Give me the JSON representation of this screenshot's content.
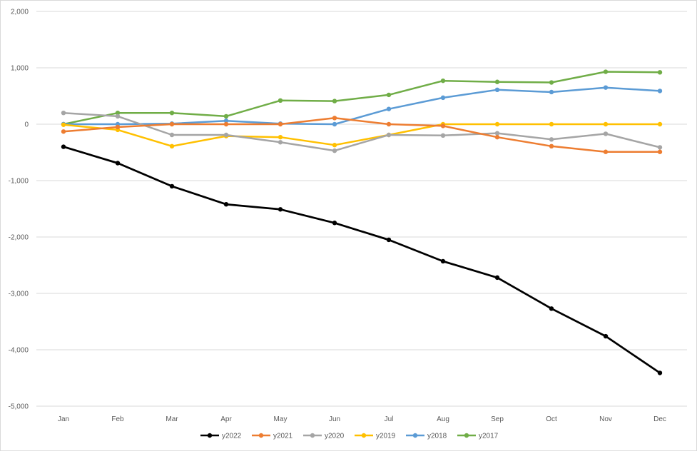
{
  "chart_data": {
    "type": "line",
    "title": "",
    "xlabel": "",
    "ylabel": "",
    "categories": [
      "Jan",
      "Feb",
      "Mar",
      "Apr",
      "May",
      "Jun",
      "Jul",
      "Aug",
      "Sep",
      "Oct",
      "Nov",
      "Dec"
    ],
    "ylim": [
      -5000,
      2000
    ],
    "yticks": [
      2000,
      1000,
      0,
      -1000,
      -2000,
      -3000,
      -4000,
      -5000
    ],
    "ytick_labels": [
      "2,000",
      "1,000",
      "0",
      "-1,000",
      "-2,000",
      "-3,000",
      "-4,000",
      "-5,000"
    ],
    "grid": "horizontal",
    "legend_position": "bottom",
    "series": [
      {
        "name": "y2022",
        "color": "#000000",
        "values": [
          -400,
          -690,
          -1100,
          -1420,
          -1510,
          -1750,
          -2050,
          -2430,
          -2720,
          -3270,
          -3760,
          -4410
        ]
      },
      {
        "name": "y2021",
        "color": "#ed7d31",
        "values": [
          -130,
          -50,
          0,
          0,
          0,
          110,
          0,
          -30,
          -230,
          -390,
          -490,
          -490
        ]
      },
      {
        "name": "y2020",
        "color": "#a5a5a5",
        "values": [
          200,
          140,
          -190,
          -190,
          -320,
          -470,
          -190,
          -200,
          -160,
          -270,
          -170,
          -410
        ]
      },
      {
        "name": "y2019",
        "color": "#ffc000",
        "values": [
          -10,
          -100,
          -390,
          -210,
          -230,
          -370,
          -190,
          0,
          0,
          0,
          0,
          0
        ]
      },
      {
        "name": "y2018",
        "color": "#5b9bd5",
        "values": [
          0,
          0,
          10,
          60,
          10,
          0,
          270,
          470,
          610,
          570,
          650,
          590
        ]
      },
      {
        "name": "y2017",
        "color": "#70ad47",
        "values": [
          0,
          200,
          200,
          140,
          420,
          410,
          520,
          770,
          750,
          740,
          930,
          920
        ]
      }
    ]
  }
}
